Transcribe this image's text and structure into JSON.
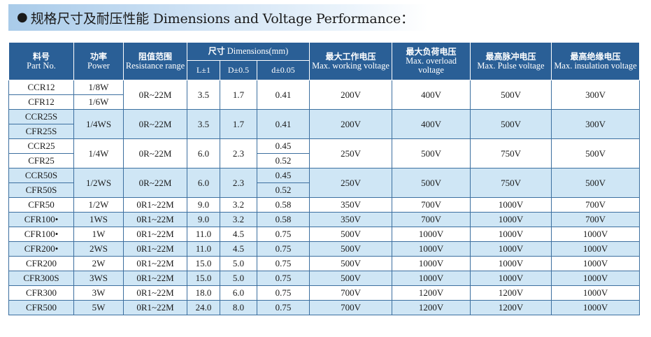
{
  "title": {
    "bullet": "●",
    "text": "规格尺寸及耐压性能 Dimensions and Voltage Performance："
  },
  "headers": {
    "part_no": {
      "zh": "料号",
      "en": "Part No."
    },
    "power": {
      "zh": "功率",
      "en": "Power"
    },
    "resistance": {
      "zh": "阻值范围",
      "en": "Resistance range"
    },
    "dimensions": {
      "zh": "尺寸",
      "en": "Dimensions(mm)"
    },
    "dim_L": "L±1",
    "dim_D": "D±0.5",
    "dim_d": "d±0.05",
    "max_working": {
      "zh": "最大工作电压",
      "en": "Max. working voltage"
    },
    "max_overload": {
      "zh": "最大负荷电压",
      "en": "Max. overload voltage"
    },
    "max_pulse": {
      "zh": "最高脉冲电压",
      "en": "Max. Pulse voltage"
    },
    "max_insulation": {
      "zh": "最高绝缘电压",
      "en": "Max. insulation voltage"
    }
  },
  "groups": [
    {
      "parts": [
        "CCR12",
        "CFR12"
      ],
      "power": [
        "1/8W",
        "1/6W"
      ],
      "resistance": "0R~22M",
      "L": "3.5",
      "D": "1.7",
      "d": [
        "0.41"
      ],
      "working": "200V",
      "overload": "400V",
      "pulse": "500V",
      "insulation": "300V"
    },
    {
      "parts": [
        "CCR25S",
        "CFR25S"
      ],
      "power": [
        "1/4WS"
      ],
      "resistance": "0R~22M",
      "L": "3.5",
      "D": "1.7",
      "d": [
        "0.41"
      ],
      "working": "200V",
      "overload": "400V",
      "pulse": "500V",
      "insulation": "300V"
    },
    {
      "parts": [
        "CCR25",
        "CFR25"
      ],
      "power": [
        "1/4W"
      ],
      "resistance": "0R~22M",
      "L": "6.0",
      "D": "2.3",
      "d": [
        "0.45",
        "0.52"
      ],
      "working": "250V",
      "overload": "500V",
      "pulse": "750V",
      "insulation": "500V"
    },
    {
      "parts": [
        "CCR50S",
        "CFR50S"
      ],
      "power": [
        "1/2WS"
      ],
      "resistance": "0R~22M",
      "L": "6.0",
      "D": "2.3",
      "d": [
        "0.45",
        "0.52"
      ],
      "working": "250V",
      "overload": "500V",
      "pulse": "750V",
      "insulation": "500V"
    }
  ],
  "rows": [
    {
      "part": "CFR50",
      "power": "1/2W",
      "resistance": "0R1~22M",
      "L": "9.0",
      "D": "3.2",
      "d": "0.58",
      "working": "350V",
      "overload": "700V",
      "pulse": "1000V",
      "insulation": "700V"
    },
    {
      "part": "CFR100•",
      "power": "1WS",
      "resistance": "0R1~22M",
      "L": "9.0",
      "D": "3.2",
      "d": "0.58",
      "working": "350V",
      "overload": "700V",
      "pulse": "1000V",
      "insulation": "700V"
    },
    {
      "part": "CFR100•",
      "power": "1W",
      "resistance": "0R1~22M",
      "L": "11.0",
      "D": "4.5",
      "d": "0.75",
      "working": "500V",
      "overload": "1000V",
      "pulse": "1000V",
      "insulation": "1000V"
    },
    {
      "part": "CFR200•",
      "power": "2WS",
      "resistance": "0R1~22M",
      "L": "11.0",
      "D": "4.5",
      "d": "0.75",
      "working": "500V",
      "overload": "1000V",
      "pulse": "1000V",
      "insulation": "1000V"
    },
    {
      "part": "CFR200",
      "power": "2W",
      "resistance": "0R1~22M",
      "L": "15.0",
      "D": "5.0",
      "d": "0.75",
      "working": "500V",
      "overload": "1000V",
      "pulse": "1000V",
      "insulation": "1000V"
    },
    {
      "part": "CFR300S",
      "power": "3WS",
      "resistance": "0R1~22M",
      "L": "15.0",
      "D": "5.0",
      "d": "0.75",
      "working": "500V",
      "overload": "1000V",
      "pulse": "1000V",
      "insulation": "1000V"
    },
    {
      "part": "CFR300",
      "power": "3W",
      "resistance": "0R1~22M",
      "L": "18.0",
      "D": "6.0",
      "d": "0.75",
      "working": "700V",
      "overload": "1200V",
      "pulse": "1200V",
      "insulation": "1000V"
    },
    {
      "part": "CFR500",
      "power": "5W",
      "resistance": "0R1~22M",
      "L": "24.0",
      "D": "8.0",
      "d": "0.75",
      "working": "700V",
      "overload": "1200V",
      "pulse": "1200V",
      "insulation": "1000V"
    }
  ]
}
